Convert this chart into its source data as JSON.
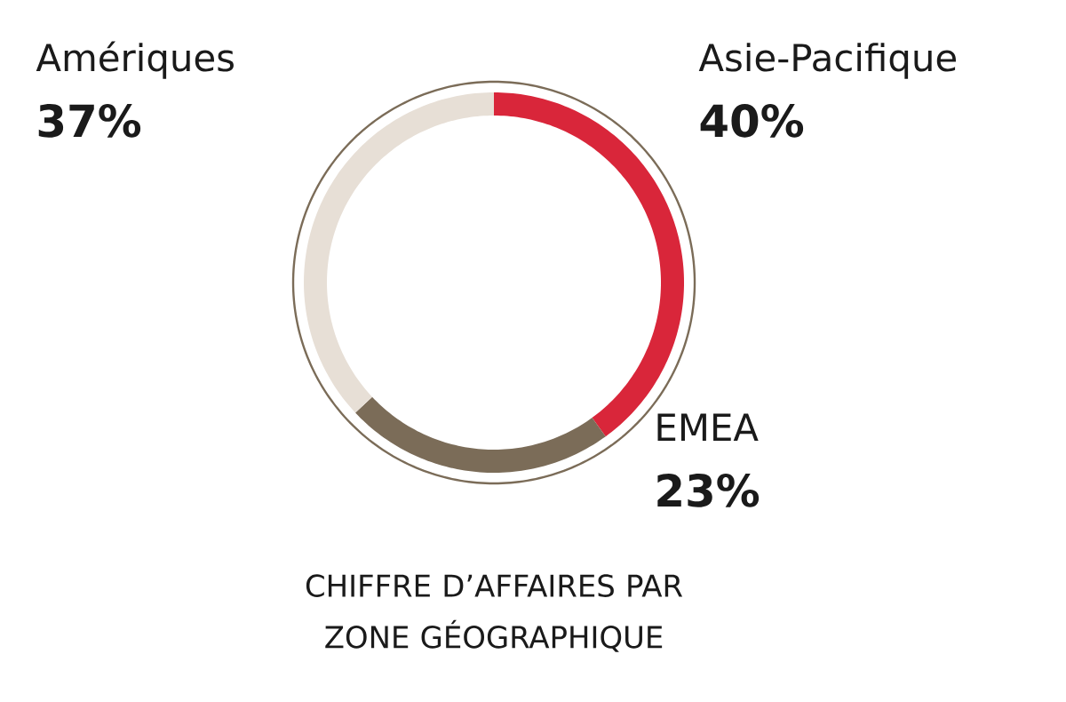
{
  "chart_data": {
    "type": "donut",
    "title": "CHIFFRE D’AFFAIRES PAR ZONE GÉOGRAPHIQUE",
    "categories": [
      "Asie-Pacifique",
      "EMEA",
      "Amériques"
    ],
    "values": [
      40,
      23,
      37
    ],
    "colors": [
      "#d9263a",
      "#7b6c58",
      "#e7dfd6"
    ],
    "value_labels": [
      "40%",
      "23%",
      "37%"
    ]
  }
}
